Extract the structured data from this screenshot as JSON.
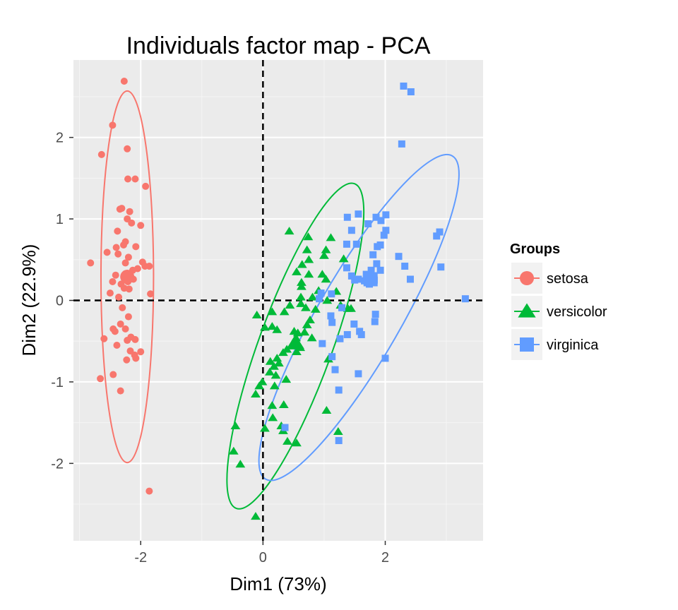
{
  "chart_data": {
    "type": "scatter",
    "title": "Individuals factor map - PCA",
    "xlabel": "Dim1 (73%)",
    "ylabel": "Dim2 (22.9%)",
    "xlim": [
      -3.1,
      3.6
    ],
    "ylim": [
      -2.95,
      2.95
    ],
    "x_ticks": [
      -2,
      0,
      2
    ],
    "y_ticks": [
      -2,
      -1,
      0,
      1,
      2
    ],
    "x_tick_labels": [
      "-2",
      "0",
      "2"
    ],
    "y_tick_labels": [
      "-2",
      "-1",
      "0",
      "1",
      "2"
    ],
    "grid": true,
    "reference_lines": {
      "x": 0,
      "y": 0,
      "style": "dashed"
    },
    "legend": {
      "title": "Groups",
      "position": "right"
    },
    "series": [
      {
        "name": "setosa",
        "color": "#F8766D",
        "marker": "circle",
        "centroid": [
          -2.22,
          0.29
        ],
        "ellipse": {
          "center": [
            -2.22,
            0.29
          ],
          "x_radius": 0.43,
          "y_radius": 2.28
        },
        "points": [
          [
            -2.27,
            2.69
          ],
          [
            -2.46,
            2.15
          ],
          [
            -2.64,
            1.79
          ],
          [
            -2.22,
            1.86
          ],
          [
            -2.21,
            1.49
          ],
          [
            -2.09,
            1.49
          ],
          [
            -1.92,
            1.4
          ],
          [
            -2.31,
            1.13
          ],
          [
            -2.34,
            1.12
          ],
          [
            -2.18,
            1.09
          ],
          [
            -2.15,
            0.95
          ],
          [
            -2.22,
            1.0
          ],
          [
            -2.0,
            0.92
          ],
          [
            -2.38,
            0.85
          ],
          [
            -2.25,
            0.72
          ],
          [
            -2.28,
            0.68
          ],
          [
            -2.4,
            0.65
          ],
          [
            -2.08,
            0.66
          ],
          [
            -2.55,
            0.59
          ],
          [
            -2.37,
            0.57
          ],
          [
            -2.2,
            0.53
          ],
          [
            -2.25,
            0.46
          ],
          [
            -2.05,
            0.39
          ],
          [
            -2.82,
            0.46
          ],
          [
            -1.97,
            0.47
          ],
          [
            -1.93,
            0.42
          ],
          [
            -1.86,
            0.42
          ],
          [
            -2.13,
            0.37
          ],
          [
            -2.41,
            0.31
          ],
          [
            -2.46,
            0.23
          ],
          [
            -2.32,
            0.2
          ],
          [
            -2.12,
            0.26
          ],
          [
            -2.27,
            0.15
          ],
          [
            -2.5,
            0.09
          ],
          [
            -2.19,
            0.14
          ],
          [
            -2.21,
            0.23
          ],
          [
            -1.84,
            0.08
          ],
          [
            -2.36,
            0.04
          ],
          [
            -2.3,
            -0.09
          ],
          [
            -2.2,
            -0.2
          ],
          [
            -2.33,
            -0.29
          ],
          [
            -2.45,
            -0.35
          ],
          [
            -2.42,
            -0.38
          ],
          [
            -2.25,
            -0.35
          ],
          [
            -2.6,
            -0.47
          ],
          [
            -2.16,
            -0.45
          ],
          [
            -2.09,
            -0.48
          ],
          [
            -2.22,
            -0.49
          ],
          [
            -2.39,
            -0.55
          ],
          [
            -2.0,
            -0.63
          ],
          [
            -2.17,
            -0.62
          ],
          [
            -2.1,
            -0.67
          ],
          [
            -2.08,
            -0.71
          ],
          [
            -2.23,
            -0.73
          ],
          [
            -2.45,
            -0.91
          ],
          [
            -2.66,
            -0.96
          ],
          [
            -2.33,
            -1.11
          ],
          [
            -1.86,
            -2.34
          ]
        ]
      },
      {
        "name": "versicolor",
        "color": "#00BA38",
        "marker": "triangle",
        "centroid": [
          0.53,
          -0.52
        ],
        "ellipse": {
          "center": [
            0.53,
            -0.56
          ],
          "x_radius": 0.6,
          "y_radius": 2.12,
          "rotation_deg": 20
        },
        "points": [
          [
            0.43,
            0.85
          ],
          [
            1.11,
            0.77
          ],
          [
            0.74,
            0.78
          ],
          [
            0.72,
            0.62
          ],
          [
            0.75,
            0.5
          ],
          [
            1.03,
            0.62
          ],
          [
            1.0,
            0.55
          ],
          [
            1.32,
            0.51
          ],
          [
            0.64,
            0.44
          ],
          [
            0.55,
            0.35
          ],
          [
            0.75,
            0.32
          ],
          [
            0.63,
            0.22
          ],
          [
            0.97,
            0.32
          ],
          [
            1.03,
            0.26
          ],
          [
            0.63,
            0.17
          ],
          [
            0.91,
            0.12
          ],
          [
            1.2,
            0.11
          ],
          [
            0.62,
            0.04
          ],
          [
            0.81,
            0.04
          ],
          [
            1.05,
            0.0
          ],
          [
            0.62,
            -0.04
          ],
          [
            0.44,
            -0.06
          ],
          [
            1.27,
            -0.06
          ],
          [
            0.7,
            -0.09
          ],
          [
            0.86,
            -0.11
          ],
          [
            1.44,
            -0.1
          ],
          [
            1.39,
            -0.1
          ],
          [
            0.35,
            -0.14
          ],
          [
            0.15,
            -0.14
          ],
          [
            -0.1,
            -0.18
          ],
          [
            0.77,
            -0.24
          ],
          [
            0.72,
            -0.3
          ],
          [
            0.15,
            -0.32
          ],
          [
            0.51,
            -0.38
          ],
          [
            0.68,
            -0.39
          ],
          [
            0.23,
            -0.36
          ],
          [
            0.03,
            -0.33
          ],
          [
            0.57,
            -0.4
          ],
          [
            0.54,
            -0.46
          ],
          [
            0.8,
            -0.46
          ],
          [
            0.46,
            -0.56
          ],
          [
            0.61,
            -0.58
          ],
          [
            0.39,
            -0.6
          ],
          [
            0.33,
            -0.64
          ],
          [
            0.55,
            -0.63
          ],
          [
            0.23,
            -0.71
          ],
          [
            1.07,
            -0.72
          ],
          [
            0.12,
            -0.75
          ],
          [
            0.26,
            -0.77
          ],
          [
            0.18,
            -0.81
          ],
          [
            0.11,
            -0.88
          ],
          [
            0.21,
            -0.92
          ],
          [
            0.38,
            -0.97
          ],
          [
            -0.01,
            -1.0
          ],
          [
            -0.06,
            -1.05
          ],
          [
            0.19,
            -1.05
          ],
          [
            -0.12,
            -1.15
          ],
          [
            0.34,
            -1.28
          ],
          [
            0.15,
            -1.29
          ],
          [
            0.16,
            -1.44
          ],
          [
            1.04,
            -1.35
          ],
          [
            0.3,
            -1.54
          ],
          [
            0.03,
            -1.57
          ],
          [
            -0.45,
            -1.54
          ],
          [
            0.33,
            -1.6
          ],
          [
            1.23,
            -1.61
          ],
          [
            0.4,
            -1.73
          ],
          [
            0.55,
            -1.75
          ],
          [
            -0.48,
            -1.85
          ],
          [
            -0.37,
            -2.01
          ],
          [
            -0.12,
            -2.65
          ]
        ]
      },
      {
        "name": "virginica",
        "color": "#619CFF",
        "marker": "square",
        "centroid": [
          1.76,
          0.26
        ],
        "ellipse": {
          "center": [
            1.57,
            -0.21
          ],
          "x_radius": 0.68,
          "y_radius": 2.29,
          "rotation_deg": 30
        },
        "points": [
          [
            2.3,
            2.63
          ],
          [
            2.42,
            2.56
          ],
          [
            2.27,
            1.92
          ],
          [
            1.56,
            1.06
          ],
          [
            2.01,
            1.05
          ],
          [
            1.38,
            1.02
          ],
          [
            1.85,
            1.02
          ],
          [
            1.93,
            0.98
          ],
          [
            1.72,
            0.94
          ],
          [
            2.01,
            0.86
          ],
          [
            1.45,
            0.86
          ],
          [
            2.89,
            0.84
          ],
          [
            2.84,
            0.79
          ],
          [
            1.98,
            0.8
          ],
          [
            1.53,
            0.69
          ],
          [
            1.37,
            0.69
          ],
          [
            1.87,
            0.66
          ],
          [
            1.92,
            0.68
          ],
          [
            1.8,
            0.56
          ],
          [
            2.22,
            0.54
          ],
          [
            2.32,
            0.42
          ],
          [
            1.86,
            0.45
          ],
          [
            2.91,
            0.41
          ],
          [
            1.77,
            0.37
          ],
          [
            1.69,
            0.32
          ],
          [
            1.82,
            0.25
          ],
          [
            1.66,
            0.24
          ],
          [
            1.74,
            0.2
          ],
          [
            1.37,
            0.4
          ],
          [
            1.45,
            0.3
          ],
          [
            1.56,
            0.26
          ],
          [
            1.92,
            0.37
          ],
          [
            2.41,
            0.26
          ],
          [
            1.5,
            0.25
          ],
          [
            3.31,
            0.02
          ],
          [
            1.12,
            0.08
          ],
          [
            0.92,
            0.02
          ],
          [
            0.95,
            0.09
          ],
          [
            1.29,
            -0.09
          ],
          [
            1.11,
            -0.19
          ],
          [
            1.13,
            -0.27
          ],
          [
            1.49,
            -0.29
          ],
          [
            1.84,
            -0.17
          ],
          [
            1.83,
            -0.26
          ],
          [
            1.58,
            -0.38
          ],
          [
            1.38,
            -0.42
          ],
          [
            1.26,
            -0.47
          ],
          [
            1.61,
            -0.42
          ],
          [
            0.97,
            -0.53
          ],
          [
            1.13,
            -0.69
          ],
          [
            1.18,
            -0.85
          ],
          [
            2.0,
            -0.71
          ],
          [
            1.56,
            -0.9
          ],
          [
            1.24,
            -1.1
          ],
          [
            0.36,
            -1.56
          ],
          [
            1.24,
            -1.72
          ]
        ]
      }
    ]
  }
}
